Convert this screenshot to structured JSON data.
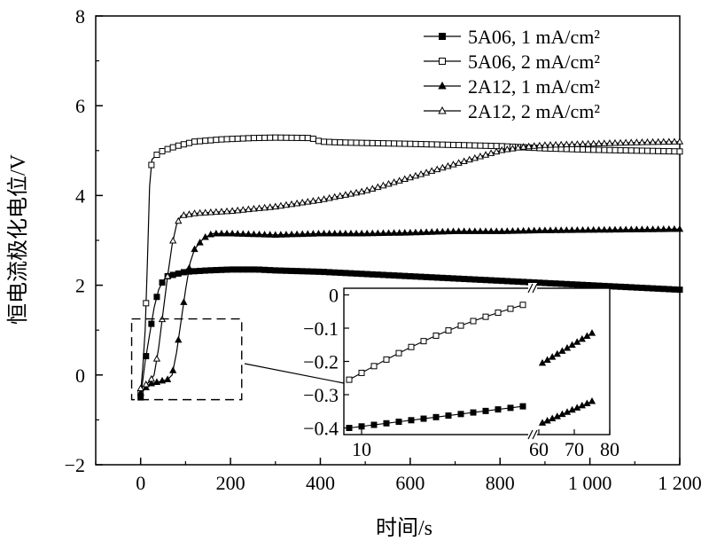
{
  "chart_data": {
    "type": "line",
    "title": "",
    "xlabel": "时间/s",
    "ylabel": "恒电流极化电位/V",
    "xlim": [
      -100,
      1200
    ],
    "ylim": [
      -2,
      8
    ],
    "x_ticks": [
      0,
      200,
      400,
      600,
      800,
      1000,
      1200
    ],
    "x_tick_labels": [
      "0",
      "200",
      "400",
      "600",
      "800",
      "1 000",
      "1 200"
    ],
    "y_ticks": [
      -2,
      0,
      2,
      4,
      6,
      8
    ],
    "y_tick_labels": [
      "−2",
      "0",
      "2",
      "4",
      "6",
      "8"
    ],
    "grid": false,
    "legend_position": "top-right",
    "series": [
      {
        "name": "5A06, 1 mA/cm²",
        "marker": "filled-square",
        "color": "#000000",
        "points": [
          [
            0,
            -0.5
          ],
          [
            10,
            0.3
          ],
          [
            20,
            0.9
          ],
          [
            30,
            1.5
          ],
          [
            40,
            1.9
          ],
          [
            50,
            2.1
          ],
          [
            60,
            2.2
          ],
          [
            80,
            2.25
          ],
          [
            100,
            2.3
          ],
          [
            150,
            2.33
          ],
          [
            200,
            2.35
          ],
          [
            260,
            2.35
          ],
          [
            300,
            2.33
          ],
          [
            400,
            2.3
          ],
          [
            500,
            2.25
          ],
          [
            600,
            2.2
          ],
          [
            700,
            2.15
          ],
          [
            800,
            2.1
          ],
          [
            900,
            2.05
          ],
          [
            1000,
            2.0
          ],
          [
            1100,
            1.95
          ],
          [
            1200,
            1.9
          ]
        ]
      },
      {
        "name": "5A06, 2 mA/cm²",
        "marker": "open-square",
        "color": "#000000",
        "points": [
          [
            0,
            -0.4
          ],
          [
            5,
            0.2
          ],
          [
            10,
            1.0
          ],
          [
            15,
            2.5
          ],
          [
            20,
            4.2
          ],
          [
            25,
            4.8
          ],
          [
            35,
            4.9
          ],
          [
            50,
            5.0
          ],
          [
            80,
            5.1
          ],
          [
            120,
            5.2
          ],
          [
            180,
            5.25
          ],
          [
            250,
            5.28
          ],
          [
            300,
            5.29
          ],
          [
            380,
            5.28
          ],
          [
            400,
            5.2
          ],
          [
            450,
            5.18
          ],
          [
            600,
            5.15
          ],
          [
            800,
            5.1
          ],
          [
            900,
            5.05
          ],
          [
            1000,
            5.02
          ],
          [
            1100,
            5.0
          ],
          [
            1200,
            4.98
          ]
        ]
      },
      {
        "name": "2A12, 1 mA/cm²",
        "marker": "filled-triangle",
        "color": "#000000",
        "points": [
          [
            0,
            -0.4
          ],
          [
            20,
            -0.2
          ],
          [
            40,
            -0.15
          ],
          [
            60,
            -0.1
          ],
          [
            70,
            0.0
          ],
          [
            80,
            0.5
          ],
          [
            90,
            1.2
          ],
          [
            100,
            1.9
          ],
          [
            110,
            2.5
          ],
          [
            120,
            2.8
          ],
          [
            140,
            3.05
          ],
          [
            160,
            3.15
          ],
          [
            200,
            3.15
          ],
          [
            300,
            3.12
          ],
          [
            400,
            3.15
          ],
          [
            500,
            3.15
          ],
          [
            600,
            3.17
          ],
          [
            700,
            3.2
          ],
          [
            800,
            3.2
          ],
          [
            900,
            3.22
          ],
          [
            1000,
            3.23
          ],
          [
            1100,
            3.24
          ],
          [
            1200,
            3.25
          ]
        ]
      },
      {
        "name": "2A12, 2 mA/cm²",
        "marker": "open-triangle",
        "color": "#000000",
        "points": [
          [
            0,
            -0.3
          ],
          [
            20,
            -0.15
          ],
          [
            30,
            0.0
          ],
          [
            40,
            0.6
          ],
          [
            50,
            1.4
          ],
          [
            60,
            2.2
          ],
          [
            70,
            2.9
          ],
          [
            80,
            3.35
          ],
          [
            90,
            3.55
          ],
          [
            120,
            3.6
          ],
          [
            200,
            3.65
          ],
          [
            300,
            3.75
          ],
          [
            400,
            3.9
          ],
          [
            500,
            4.1
          ],
          [
            600,
            4.4
          ],
          [
            700,
            4.7
          ],
          [
            800,
            5.0
          ],
          [
            850,
            5.08
          ],
          [
            900,
            5.12
          ],
          [
            1000,
            5.15
          ],
          [
            1100,
            5.18
          ],
          [
            1200,
            5.2
          ]
        ]
      }
    ],
    "inset": {
      "xlim": [
        5,
        80
      ],
      "ylim": [
        -0.42,
        0.02
      ],
      "x_ticks": [
        10,
        60,
        70,
        80
      ],
      "x_tick_labels": [
        "10",
        "60",
        "70",
        "80"
      ],
      "y_ticks": [
        0,
        -0.1,
        -0.2,
        -0.3,
        -0.4
      ],
      "y_tick_labels": [
        "0",
        "−0.1",
        "−0.2",
        "−0.3",
        "−0.4"
      ],
      "axis_break": "//",
      "series": [
        {
          "name": "5A06, 1 mA/cm²",
          "marker": "filled-square",
          "segment": "left",
          "from": [
            5,
            -0.4
          ],
          "to": [
            60,
            -0.335
          ],
          "n": 15
        },
        {
          "name": "5A06, 2 mA/cm²",
          "marker": "open-square",
          "segment": "left",
          "from": [
            5,
            -0.255
          ],
          "to": [
            60,
            -0.03
          ],
          "n": 15,
          "curve": 0.02
        },
        {
          "name": "2A12, 1 mA/cm²",
          "marker": "filled-triangle",
          "segment": "right",
          "from": [
            60,
            -0.385
          ],
          "to": [
            75,
            -0.32
          ],
          "n": 11
        },
        {
          "name": "2A12, 2 mA/cm²",
          "marker": "filled-triangle",
          "segment": "right",
          "from": [
            60,
            -0.205
          ],
          "to": [
            75,
            -0.115
          ],
          "n": 11
        }
      ]
    },
    "zoom_box": {
      "x": [
        -20,
        225
      ],
      "y": [
        -0.55,
        1.25
      ]
    }
  }
}
